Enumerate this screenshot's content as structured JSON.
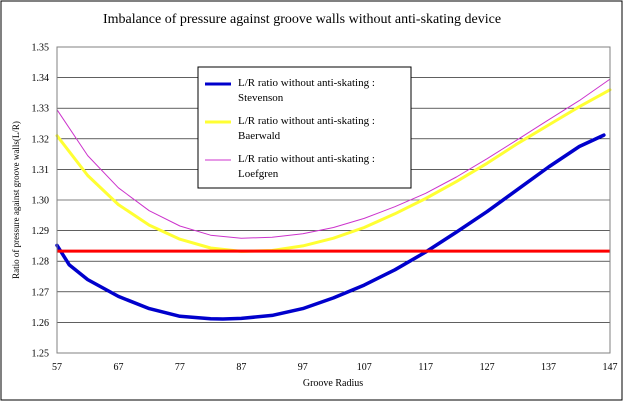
{
  "chart_data": {
    "type": "line",
    "title": "Imbalance of pressure against groove walls without anti-skating device",
    "xlabel": "Groove Radius",
    "ylabel": "Ratio of pressure against groove walls(L/R)",
    "xlim": [
      57,
      147
    ],
    "ylim": [
      1.25,
      1.35
    ],
    "xticks": [
      "57",
      "67",
      "77",
      "87",
      "97",
      "107",
      "117",
      "127",
      "137",
      "147"
    ],
    "yticks": [
      "1.25",
      "1.26",
      "1.27",
      "1.28",
      "1.29",
      "1.30",
      "1.31",
      "1.32",
      "1.33",
      "1.34",
      "1.35"
    ],
    "grid": "horizontal",
    "legend_position": "top-center",
    "series": [
      {
        "name": "L/R ratio without anti-skating : Stevenson",
        "color": "#0000cc",
        "x": [
          57,
          59,
          62,
          67,
          72,
          77,
          82,
          84,
          87,
          92,
          97,
          102,
          107,
          112,
          117,
          122,
          127,
          132,
          137,
          142,
          146
        ],
        "y": [
          1.2852,
          1.2788,
          1.274,
          1.2685,
          1.2645,
          1.262,
          1.2612,
          1.2611,
          1.2613,
          1.2623,
          1.2645,
          1.268,
          1.2722,
          1.2772,
          1.283,
          1.2895,
          1.2962,
          1.3035,
          1.3108,
          1.3175,
          1.3212
        ]
      },
      {
        "name": "L/R ratio without anti-skating : Baerwald",
        "color": "#ffff33",
        "x": [
          57,
          62,
          67,
          72,
          77,
          82,
          87,
          92,
          97,
          102,
          107,
          112,
          117,
          122,
          127,
          132,
          137,
          142,
          147
        ],
        "y": [
          1.321,
          1.308,
          1.2985,
          1.2918,
          1.2872,
          1.2843,
          1.2832,
          1.2835,
          1.285,
          1.2875,
          1.291,
          1.2955,
          1.3005,
          1.306,
          1.312,
          1.3185,
          1.3245,
          1.3305,
          1.336
        ]
      },
      {
        "name": "L/R ratio without anti-skating : Loefgren",
        "color": "#cc33cc",
        "x": [
          57,
          62,
          67,
          72,
          77,
          82,
          87,
          92,
          97,
          102,
          107,
          112,
          117,
          122,
          127,
          132,
          137,
          142,
          147
        ],
        "y": [
          1.3295,
          1.3145,
          1.304,
          1.2965,
          1.2915,
          1.2885,
          1.2875,
          1.2878,
          1.289,
          1.291,
          1.294,
          1.2978,
          1.3022,
          1.3075,
          1.3135,
          1.3198,
          1.3262,
          1.3325,
          1.3395
        ]
      }
    ],
    "reference_line": {
      "y": 1.2833,
      "color": "#ff0000"
    }
  }
}
